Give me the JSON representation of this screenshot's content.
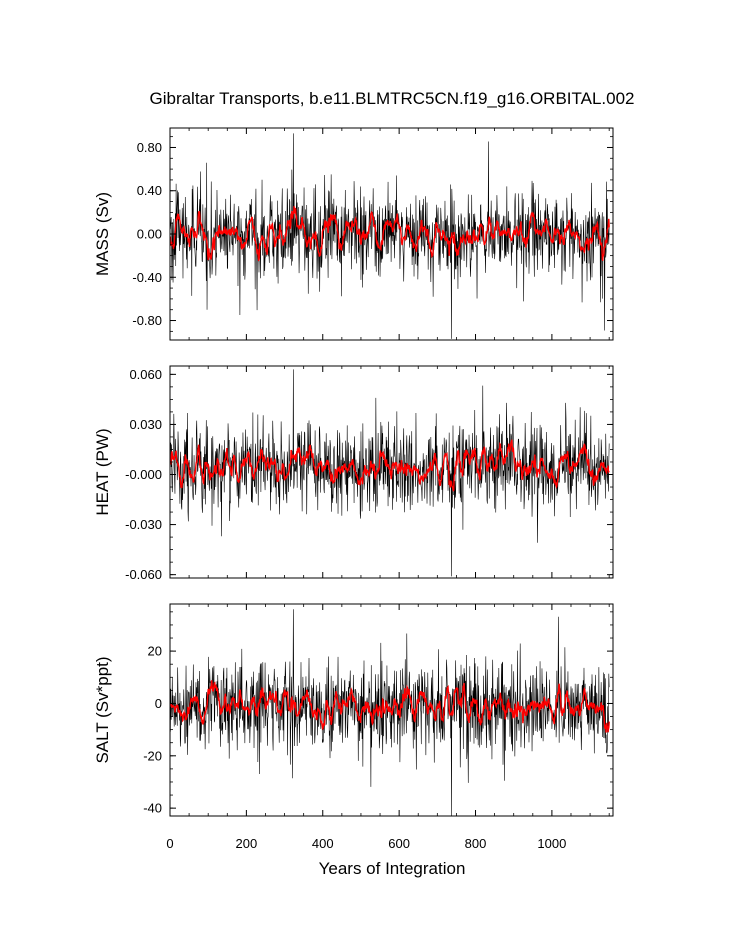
{
  "chart_data": {
    "type": "line",
    "title": "Gibraltar Transports, b.e11.BLMTRC5CN.f19_g16.ORBITAL.002",
    "xlabel": "Years of Integration",
    "xlim": [
      0,
      1160
    ],
    "x_ticks": [
      0,
      200,
      400,
      600,
      800,
      1000
    ],
    "x_tick_labels": [
      "0",
      "200",
      "400",
      "600",
      "800",
      "1000"
    ],
    "n_points": 1150,
    "colors": {
      "raw": "#000000",
      "smoothed": "#ff0000",
      "frame": "#000000"
    },
    "grid": false,
    "legend": "none",
    "panels": [
      {
        "ylabel": "MASS (Sv)",
        "ylim": [
          -0.98,
          0.98
        ],
        "y_ticks": [
          0.8,
          0.4,
          0.0,
          -0.4,
          -0.8
        ],
        "y_tick_labels": [
          "0.80",
          "0.40",
          "0.00",
          "-0.40",
          "-0.80"
        ],
        "raw": {
          "mean": 0.0,
          "std": 0.2,
          "max": 0.93,
          "min": -0.97
        },
        "smoothed": {
          "mean": 0.0,
          "amplitude": 0.05
        }
      },
      {
        "ylabel": "HEAT (PW)",
        "ylim": [
          -0.062,
          0.065
        ],
        "y_ticks": [
          0.06,
          0.03,
          0.0,
          -0.03,
          -0.06
        ],
        "y_tick_labels": [
          "0.060",
          "0.030",
          "-0.000",
          "-0.030",
          "-0.060"
        ],
        "raw": {
          "mean": 0.005,
          "std": 0.013,
          "max": 0.063,
          "min": -0.061
        },
        "smoothed": {
          "mean": 0.005,
          "amplitude": 0.004
        }
      },
      {
        "ylabel": "SALT (Sv*ppt)",
        "ylim": [
          -43,
          38
        ],
        "y_ticks": [
          20,
          0,
          -20,
          -40
        ],
        "y_tick_labels": [
          "20",
          "0",
          "-20",
          "-40"
        ],
        "raw": {
          "mean": -1.0,
          "std": 8.5,
          "max": 36,
          "min": -43
        },
        "smoothed": {
          "mean": -1.0,
          "amplitude": 2.0
        }
      }
    ]
  }
}
